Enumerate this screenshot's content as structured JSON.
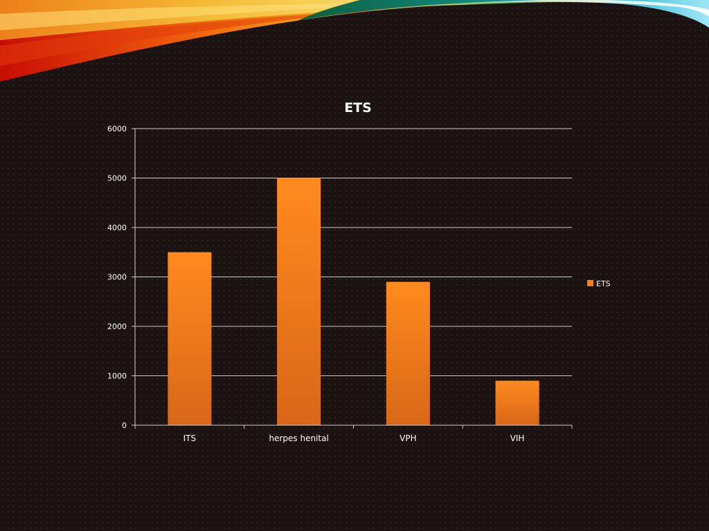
{
  "slide": {
    "background": "#1a1313",
    "dot_color": "#96322d"
  },
  "chart_data": {
    "type": "bar",
    "title": "ETS",
    "categories": [
      "ITS",
      "herpes henital",
      "VPH",
      "VIH"
    ],
    "series": [
      {
        "name": "ETS",
        "values": [
          3500,
          5000,
          2900,
          900
        ],
        "color": "#f08020"
      }
    ],
    "ylim": [
      0,
      6000
    ],
    "yticks": [
      0,
      1000,
      2000,
      3000,
      4000,
      5000,
      6000
    ],
    "grid": true,
    "legend": "right",
    "xlabel": "",
    "ylabel": ""
  }
}
